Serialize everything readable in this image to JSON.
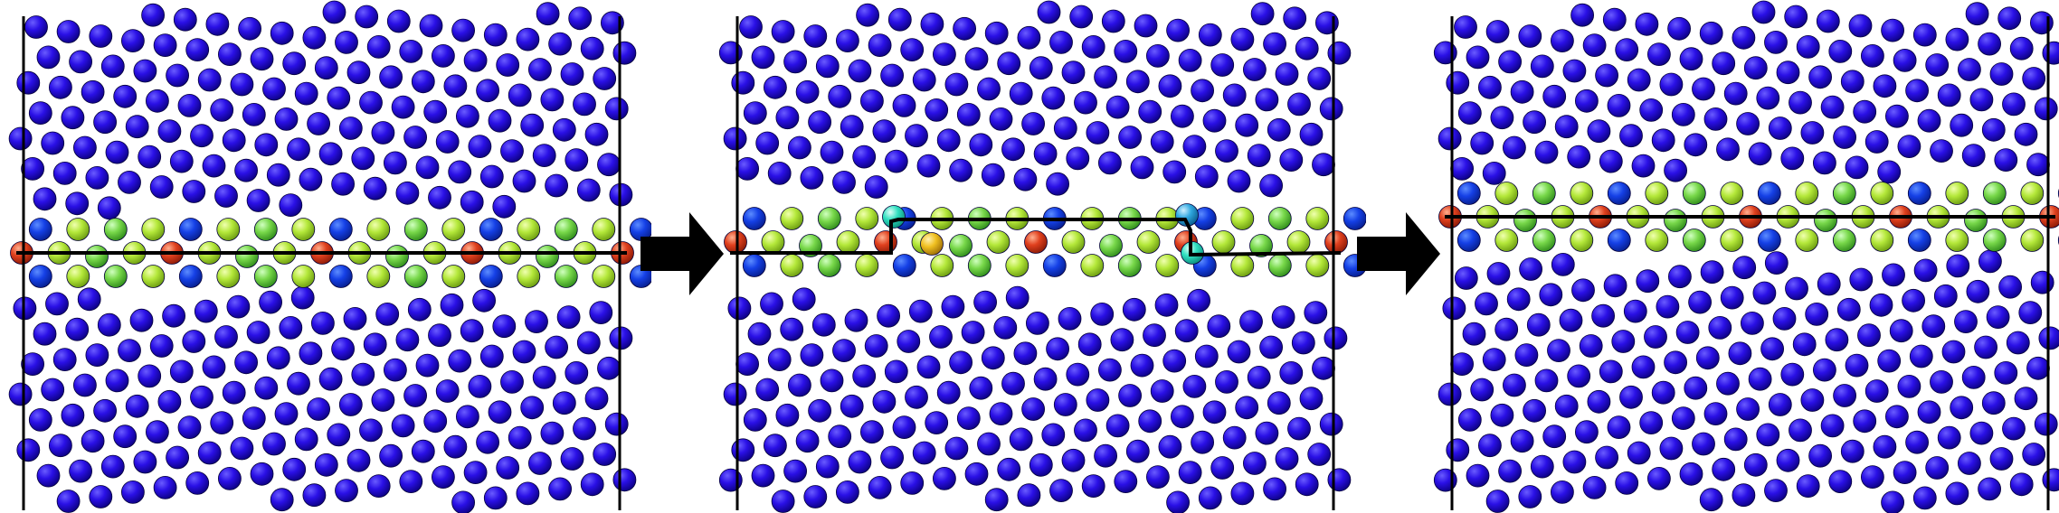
{
  "figure": {
    "panels": [
      {
        "id": "panel-1",
        "boundary": "flat",
        "boundary_row_offset": 0
      },
      {
        "id": "panel-2",
        "boundary": "stepped",
        "step": "raised-middle",
        "disturbed_atom_colors": [
          "#00e0c0",
          "#f0c020",
          "#30b0e0"
        ]
      },
      {
        "id": "panel-3",
        "boundary": "flat",
        "boundary_row_offset": -1
      }
    ],
    "arrows": [
      {
        "from": "panel-1",
        "to": "panel-2",
        "icon": "right-arrow"
      },
      {
        "from": "panel-2",
        "to": "panel-3",
        "icon": "right-arrow"
      }
    ],
    "colors": {
      "bulk_atom": "#1400d8",
      "boundary_row_atom": "#0a2fe0",
      "near_boundary_atom": "#a8e61e",
      "mid_boundary_atom": "#7dd85a",
      "core_atom": "#e0401e",
      "boundary_line": "#000000",
      "arrow": "#000000",
      "frame": "#000000"
    }
  }
}
